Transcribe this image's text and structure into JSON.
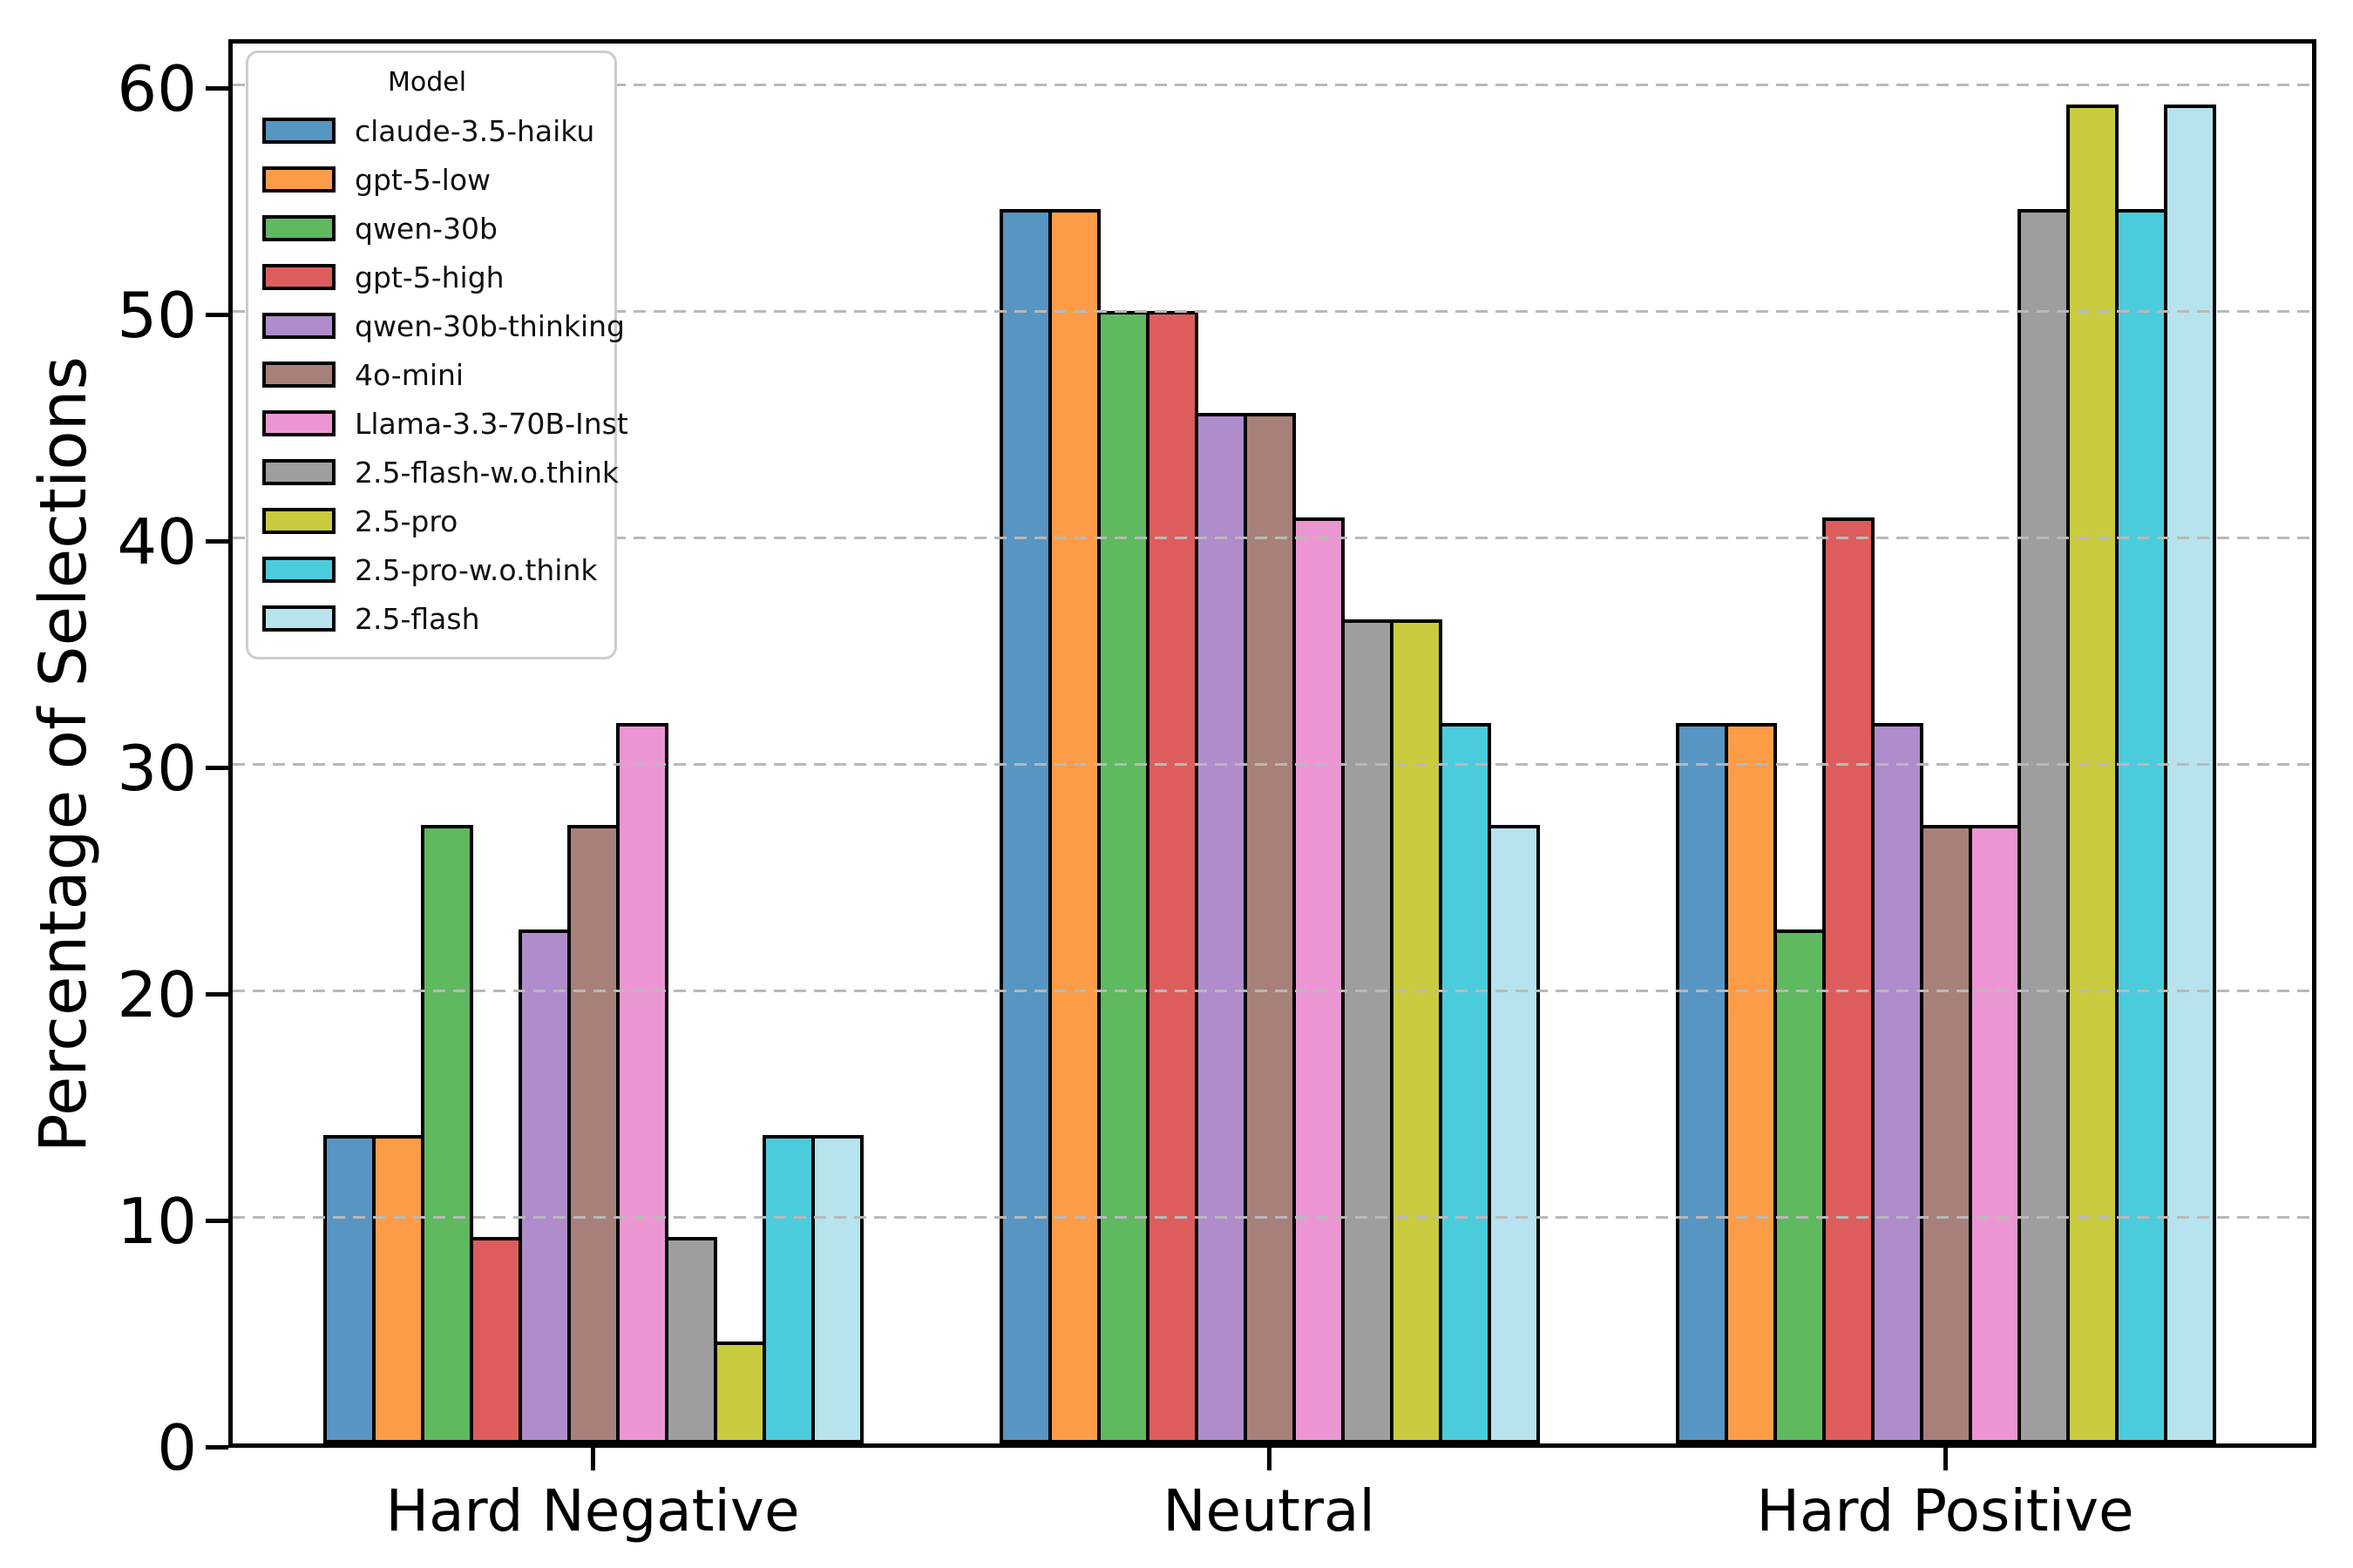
{
  "chart_data": {
    "type": "bar",
    "title": "",
    "ylabel": "Percentage of Selections",
    "xlabel": "",
    "categories": [
      "Hard Negative",
      "Neutral",
      "Hard Positive"
    ],
    "series": [
      {
        "name": "claude-3.5-haiku",
        "color": "#5795C3",
        "values": [
          13.6,
          54.5,
          31.8
        ]
      },
      {
        "name": "gpt-5-low",
        "color": "#FD9C46",
        "values": [
          13.6,
          54.5,
          31.8
        ]
      },
      {
        "name": "qwen-30b",
        "color": "#5FB95F",
        "values": [
          27.3,
          50.0,
          22.7
        ]
      },
      {
        "name": "gpt-5-high",
        "color": "#DD5D5D",
        "values": [
          9.1,
          50.0,
          40.9
        ]
      },
      {
        "name": "qwen-30b-thinking",
        "color": "#AF8CCC",
        "values": [
          22.7,
          45.5,
          31.8
        ]
      },
      {
        "name": "4o-mini",
        "color": "#A8807A",
        "values": [
          27.3,
          45.5,
          27.3
        ]
      },
      {
        "name": "Llama-3.3-70B-Inst",
        "color": "#EB96D3",
        "values": [
          31.8,
          40.9,
          27.3
        ]
      },
      {
        "name": "2.5-flash-w.o.think",
        "color": "#9E9E9E",
        "values": [
          9.1,
          36.4,
          54.5
        ]
      },
      {
        "name": "2.5-pro",
        "color": "#C9CB3E",
        "values": [
          4.5,
          36.4,
          59.1
        ]
      },
      {
        "name": "2.5-pro-w.o.think",
        "color": "#4BCCDC",
        "values": [
          13.6,
          31.8,
          54.5
        ]
      },
      {
        "name": "2.5-flash",
        "color": "#B6E3EE",
        "values": [
          13.6,
          27.3,
          59.1
        ]
      }
    ],
    "legend_title": "Model",
    "y_ticks": [
      0,
      10,
      20,
      30,
      40,
      50,
      60
    ],
    "ylim": [
      0,
      62.2
    ],
    "grid": "horizontal dashed gridlines at y ticks, drawn over bars",
    "legend_position": "upper left"
  }
}
